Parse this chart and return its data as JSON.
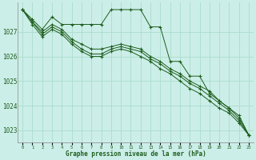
{
  "title": "Graphe pression niveau de la mer (hPa)",
  "background_color": "#cceee8",
  "grid_color": "#aaddcc",
  "line_color": "#1e5e1e",
  "ylim": [
    1022.5,
    1028.2
  ],
  "xlim": [
    -0.5,
    23.5
  ],
  "yticks": [
    1023,
    1024,
    1025,
    1026,
    1027
  ],
  "xticks": [
    0,
    1,
    2,
    3,
    4,
    5,
    6,
    7,
    8,
    9,
    10,
    11,
    12,
    13,
    14,
    15,
    16,
    17,
    18,
    19,
    20,
    21,
    22,
    23
  ],
  "series": [
    [
      1027.9,
      1027.5,
      1027.1,
      1027.6,
      1027.3,
      1027.3,
      1027.3,
      1027.3,
      1027.3,
      1027.9,
      1027.9,
      1027.9,
      1027.9,
      1027.2,
      1027.2,
      1025.8,
      1025.8,
      1025.2,
      1025.2,
      1024.5,
      1024.2,
      1023.9,
      1023.6,
      1022.8
    ],
    [
      1027.9,
      1027.4,
      1027.0,
      1027.3,
      1027.1,
      1026.7,
      1026.5,
      1026.3,
      1026.3,
      1026.4,
      1026.5,
      1026.4,
      1026.3,
      1026.0,
      1025.8,
      1025.5,
      1025.3,
      1025.0,
      1024.8,
      1024.6,
      1024.2,
      1023.9,
      1023.5,
      1022.8
    ],
    [
      1027.9,
      1027.4,
      1026.9,
      1027.2,
      1027.0,
      1026.6,
      1026.3,
      1026.1,
      1026.1,
      1026.3,
      1026.4,
      1026.3,
      1026.2,
      1025.9,
      1025.7,
      1025.4,
      1025.2,
      1024.9,
      1024.7,
      1024.4,
      1024.1,
      1023.8,
      1023.4,
      1022.8
    ],
    [
      1027.9,
      1027.3,
      1026.8,
      1027.1,
      1026.9,
      1026.5,
      1026.2,
      1026.0,
      1026.0,
      1026.2,
      1026.3,
      1026.2,
      1026.0,
      1025.8,
      1025.5,
      1025.3,
      1025.0,
      1024.7,
      1024.5,
      1024.2,
      1023.9,
      1023.7,
      1023.3,
      1022.8
    ]
  ]
}
